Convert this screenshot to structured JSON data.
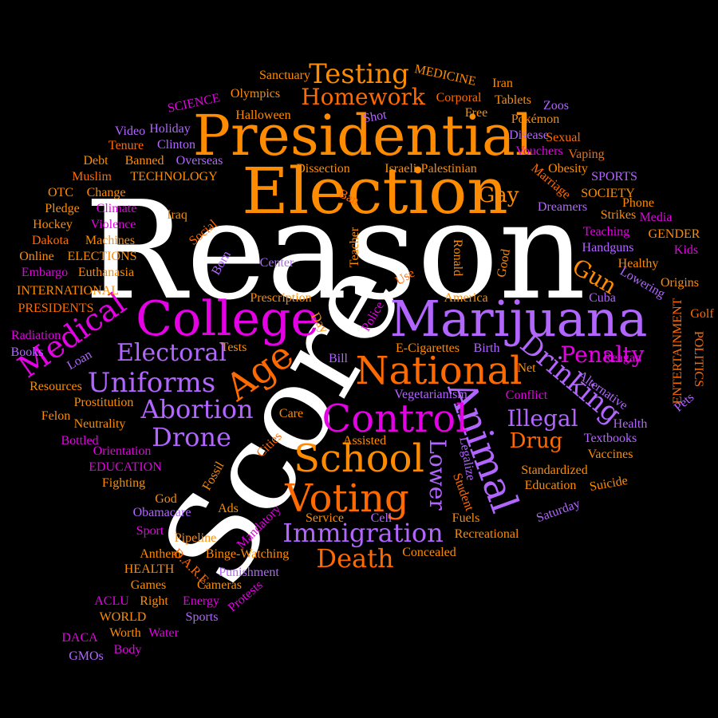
{
  "palette": {
    "background": "#000000",
    "white": "#FFFFFF",
    "orange": "#FF8C00",
    "dark_orange": "#FF6A00",
    "purple": "#B266FF",
    "magenta": "#E600E6"
  },
  "words": [
    {
      "text": "Reason",
      "color": "white"
    },
    {
      "text": "Score",
      "color": "white"
    },
    {
      "text": "Presidential",
      "color": "orange"
    },
    {
      "text": "Election",
      "color": "orange"
    },
    {
      "text": "Marijuana",
      "color": "purple"
    },
    {
      "text": "College",
      "color": "magenta"
    },
    {
      "text": "Animal",
      "color": "purple"
    },
    {
      "text": "National",
      "color": "dark_orange"
    },
    {
      "text": "Control",
      "color": "magenta"
    },
    {
      "text": "School",
      "color": "orange"
    },
    {
      "text": "Voting",
      "color": "dark_orange"
    },
    {
      "text": "Age",
      "color": "dark_orange"
    },
    {
      "text": "Immigration",
      "color": "purple"
    },
    {
      "text": "Death",
      "color": "dark_orange"
    },
    {
      "text": "Testing",
      "color": "orange"
    },
    {
      "text": "Homework",
      "color": "dark_orange"
    },
    {
      "text": "Medical",
      "color": "magenta"
    },
    {
      "text": "Uniforms",
      "color": "purple"
    },
    {
      "text": "Abortion",
      "color": "purple"
    },
    {
      "text": "Electoral",
      "color": "purple"
    },
    {
      "text": "Drone",
      "color": "purple"
    },
    {
      "text": "Drinking",
      "color": "purple"
    },
    {
      "text": "Penalty",
      "color": "magenta"
    },
    {
      "text": "Illegal",
      "color": "purple"
    },
    {
      "text": "Lower",
      "color": "purple"
    },
    {
      "text": "Gun",
      "color": "orange"
    },
    {
      "text": "Gay",
      "color": "orange"
    },
    {
      "text": "Drug",
      "color": "dark_orange"
    },
    {
      "text": "Sanctuary",
      "color": "orange"
    },
    {
      "text": "MEDICINE",
      "color": "orange"
    },
    {
      "text": "Iran",
      "color": "orange"
    },
    {
      "text": "SCIENCE",
      "color": "magenta"
    },
    {
      "text": "Olympics",
      "color": "orange"
    },
    {
      "text": "Corporal",
      "color": "dark_orange"
    },
    {
      "text": "Tablets",
      "color": "orange"
    },
    {
      "text": "Halloween",
      "color": "orange"
    },
    {
      "text": "Shot",
      "color": "purple"
    },
    {
      "text": "Free",
      "color": "orange"
    },
    {
      "text": "Zoos",
      "color": "purple"
    },
    {
      "text": "Video",
      "color": "purple"
    },
    {
      "text": "Holiday",
      "color": "purple"
    },
    {
      "text": "Pokémon",
      "color": "orange"
    },
    {
      "text": "Disease",
      "color": "purple"
    },
    {
      "text": "Sexual",
      "color": "dark_orange"
    },
    {
      "text": "Tenure",
      "color": "dark_orange"
    },
    {
      "text": "Clinton",
      "color": "purple"
    },
    {
      "text": "Vouchers",
      "color": "magenta"
    },
    {
      "text": "Vaping",
      "color": "dark_orange"
    },
    {
      "text": "Debt",
      "color": "orange"
    },
    {
      "text": "Banned",
      "color": "orange"
    },
    {
      "text": "Overseas",
      "color": "purple"
    },
    {
      "text": "Dissection",
      "color": "orange"
    },
    {
      "text": "Israeli-Palestinian",
      "color": "orange"
    },
    {
      "text": "Obesity",
      "color": "orange"
    },
    {
      "text": "Marriage",
      "color": "dark_orange"
    },
    {
      "text": "SPORTS",
      "color": "purple"
    },
    {
      "text": "Muslim",
      "color": "dark_orange"
    },
    {
      "text": "TECHNOLOGY",
      "color": "orange"
    },
    {
      "text": "OTC",
      "color": "orange"
    },
    {
      "text": "Change",
      "color": "orange"
    },
    {
      "text": "SOCIETY",
      "color": "orange"
    },
    {
      "text": "Phone",
      "color": "orange"
    },
    {
      "text": "Ban",
      "color": "dark_orange"
    },
    {
      "text": "Dreamers",
      "color": "purple"
    },
    {
      "text": "Pledge",
      "color": "orange"
    },
    {
      "text": "Climate",
      "color": "magenta"
    },
    {
      "text": "Strikes",
      "color": "orange"
    },
    {
      "text": "Media",
      "color": "magenta"
    },
    {
      "text": "Hockey",
      "color": "orange"
    },
    {
      "text": "Violence",
      "color": "magenta"
    },
    {
      "text": "Iraq",
      "color": "orange"
    },
    {
      "text": "Teaching",
      "color": "magenta"
    },
    {
      "text": "GENDER",
      "color": "orange"
    },
    {
      "text": "Dakota",
      "color": "dark_orange"
    },
    {
      "text": "Machines",
      "color": "orange"
    },
    {
      "text": "Social",
      "color": "dark_orange"
    },
    {
      "text": "Teacher",
      "color": "orange"
    },
    {
      "text": "Ronald",
      "color": "orange"
    },
    {
      "text": "Handguns",
      "color": "purple"
    },
    {
      "text": "Kids",
      "color": "magenta"
    },
    {
      "text": "Online",
      "color": "orange"
    },
    {
      "text": "ELECTIONS",
      "color": "orange"
    },
    {
      "text": "Born",
      "color": "purple"
    },
    {
      "text": "Good",
      "color": "orange"
    },
    {
      "text": "Healthy",
      "color": "orange"
    },
    {
      "text": "Embargo",
      "color": "magenta"
    },
    {
      "text": "Euthanasia",
      "color": "orange"
    },
    {
      "text": "Center",
      "color": "purple"
    },
    {
      "text": "Use",
      "color": "dark_orange"
    },
    {
      "text": "Lowering",
      "color": "purple"
    },
    {
      "text": "INTERNATIONAL",
      "color": "orange"
    },
    {
      "text": "Prescription",
      "color": "orange"
    },
    {
      "text": "America",
      "color": "orange"
    },
    {
      "text": "Origins",
      "color": "orange"
    },
    {
      "text": "PRESIDENTS",
      "color": "dark_orange"
    },
    {
      "text": "Police",
      "color": "magenta"
    },
    {
      "text": "Cuba",
      "color": "purple"
    },
    {
      "text": "ENTERTAINMENT",
      "color": "dark_orange"
    },
    {
      "text": "Golf",
      "color": "dark_orange"
    },
    {
      "text": "Radiation",
      "color": "magenta"
    },
    {
      "text": "Day",
      "color": "orange"
    },
    {
      "text": "Loan",
      "color": "purple"
    },
    {
      "text": "Tests",
      "color": "orange"
    },
    {
      "text": "POLITICS",
      "color": "dark_orange"
    },
    {
      "text": "Books",
      "color": "purple"
    },
    {
      "text": "E-Cigarettes",
      "color": "orange"
    },
    {
      "text": "Birth",
      "color": "purple"
    },
    {
      "text": "Bill",
      "color": "purple"
    },
    {
      "text": "Reagan",
      "color": "magenta"
    },
    {
      "text": "Resources",
      "color": "orange"
    },
    {
      "text": "Net",
      "color": "orange"
    },
    {
      "text": "Alternative",
      "color": "purple"
    },
    {
      "text": "Prostitution",
      "color": "orange"
    },
    {
      "text": "Vegetarianism",
      "color": "purple"
    },
    {
      "text": "Conflict",
      "color": "magenta"
    },
    {
      "text": "Pets",
      "color": "purple"
    },
    {
      "text": "Felon",
      "color": "orange"
    },
    {
      "text": "Care",
      "color": "orange"
    },
    {
      "text": "Health",
      "color": "purple"
    },
    {
      "text": "Neutrality",
      "color": "orange"
    },
    {
      "text": "Bottled",
      "color": "magenta"
    },
    {
      "text": "Assisted",
      "color": "orange"
    },
    {
      "text": "Textbooks",
      "color": "purple"
    },
    {
      "text": "Orientation",
      "color": "magenta"
    },
    {
      "text": "Cities",
      "color": "dark_orange"
    },
    {
      "text": "Legalize",
      "color": "purple"
    },
    {
      "text": "Vaccines",
      "color": "orange"
    },
    {
      "text": "EDUCATION",
      "color": "magenta"
    },
    {
      "text": "Standardized",
      "color": "orange"
    },
    {
      "text": "Fighting",
      "color": "orange"
    },
    {
      "text": "Fossil",
      "color": "orange"
    },
    {
      "text": "Student",
      "color": "dark_orange"
    },
    {
      "text": "Education",
      "color": "orange"
    },
    {
      "text": "Suicide",
      "color": "orange"
    },
    {
      "text": "God",
      "color": "orange"
    },
    {
      "text": "Obamacare",
      "color": "purple"
    },
    {
      "text": "Ads",
      "color": "orange"
    },
    {
      "text": "Service",
      "color": "orange"
    },
    {
      "text": "Cell",
      "color": "purple"
    },
    {
      "text": "Fuels",
      "color": "orange"
    },
    {
      "text": "Saturday",
      "color": "purple"
    },
    {
      "text": "Mandatory",
      "color": "magenta"
    },
    {
      "text": "Sport",
      "color": "magenta"
    },
    {
      "text": "Pipeline",
      "color": "orange"
    },
    {
      "text": "Recreational",
      "color": "orange"
    },
    {
      "text": "Anthem",
      "color": "orange"
    },
    {
      "text": "Binge-Watching",
      "color": "orange"
    },
    {
      "text": "Concealed",
      "color": "orange"
    },
    {
      "text": "HEALTH",
      "color": "orange"
    },
    {
      "text": "D.A.R.E.",
      "color": "dark_orange"
    },
    {
      "text": "Punishment",
      "color": "purple"
    },
    {
      "text": "Games",
      "color": "orange"
    },
    {
      "text": "Cameras",
      "color": "orange"
    },
    {
      "text": "ACLU",
      "color": "magenta"
    },
    {
      "text": "Right",
      "color": "orange"
    },
    {
      "text": "Energy",
      "color": "magenta"
    },
    {
      "text": "Protests",
      "color": "magenta"
    },
    {
      "text": "WORLD",
      "color": "orange"
    },
    {
      "text": "Sports",
      "color": "purple"
    },
    {
      "text": "DACA",
      "color": "magenta"
    },
    {
      "text": "Worth",
      "color": "orange"
    },
    {
      "text": "Water",
      "color": "magenta"
    },
    {
      "text": "GMOs",
      "color": "purple"
    },
    {
      "text": "Body",
      "color": "magenta"
    }
  ]
}
